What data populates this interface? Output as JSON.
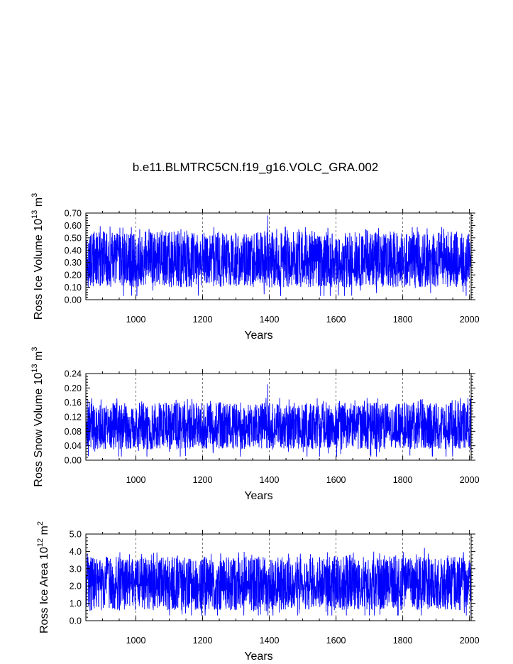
{
  "title": "b.e11.BLMTRC5CN.f19_g16.VOLC_GRA.002",
  "colors": {
    "series": "#0000ff",
    "axes": "#000000",
    "grid": "#555555"
  },
  "chart_data": [
    {
      "type": "line",
      "ylabel_main": "Ross Ice Volume 10",
      "ylabel_sup1": "13",
      "ylabel_mid": " m",
      "ylabel_sup2": "3",
      "xlabel": "Years",
      "xlim": [
        850,
        2005
      ],
      "ylim": [
        0.0,
        0.7
      ],
      "xticks": [
        1000,
        1200,
        1400,
        1600,
        1800,
        2000
      ],
      "xtick_labels": [
        "1000",
        "1200",
        "1400",
        "1600",
        "1800",
        "2000"
      ],
      "yticks": [
        0.0,
        0.1,
        0.2,
        0.3,
        0.4,
        0.5,
        0.6,
        0.7
      ],
      "ytick_labels": [
        "0.00",
        "0.10",
        "0.20",
        "0.30",
        "0.40",
        "0.50",
        "0.60",
        "0.70"
      ],
      "grid": "vertical-dashed",
      "series": [
        {
          "values": {
            "start_year": 850,
            "end_year": 2005,
            "mean": 0.3,
            "typical_min": 0.1,
            "typical_max": 0.55,
            "extreme_min": 0.03,
            "extreme_max": 0.68,
            "extreme_max_year": 1395
          }
        }
      ]
    },
    {
      "type": "line",
      "ylabel_main": "Ross Snow Volume 10",
      "ylabel_sup1": "13",
      "ylabel_mid": " m",
      "ylabel_sup2": "3",
      "xlabel": "Years",
      "xlim": [
        850,
        2005
      ],
      "ylim": [
        0.0,
        0.24
      ],
      "xticks": [
        1000,
        1200,
        1400,
        1600,
        1800,
        2000
      ],
      "xtick_labels": [
        "1000",
        "1200",
        "1400",
        "1600",
        "1800",
        "2000"
      ],
      "yticks": [
        0.0,
        0.04,
        0.08,
        0.12,
        0.16,
        0.2,
        0.24
      ],
      "ytick_labels": [
        "0.00",
        "0.04",
        "0.08",
        "0.12",
        "0.16",
        "0.20",
        "0.24"
      ],
      "grid": "vertical-dashed",
      "series": [
        {
          "values": {
            "start_year": 850,
            "end_year": 2005,
            "mean": 0.09,
            "typical_min": 0.03,
            "typical_max": 0.16,
            "extreme_min": 0.01,
            "extreme_max": 0.21,
            "extreme_max_year": 1395
          }
        }
      ]
    },
    {
      "type": "line",
      "ylabel_main": "Ross Ice Area 10",
      "ylabel_sup1": "12",
      "ylabel_mid": " m",
      "ylabel_sup2": "2",
      "xlabel": "Years",
      "xlim": [
        850,
        2005
      ],
      "ylim": [
        0.0,
        5.0
      ],
      "xticks": [
        1000,
        1200,
        1400,
        1600,
        1800,
        2000
      ],
      "xtick_labels": [
        "1000",
        "1200",
        "1400",
        "1600",
        "1800",
        "2000"
      ],
      "yticks": [
        0.0,
        1.0,
        2.0,
        3.0,
        4.0,
        5.0
      ],
      "ytick_labels": [
        "0.0",
        "1.0",
        "2.0",
        "3.0",
        "4.0",
        "5.0"
      ],
      "grid": "vertical-dashed",
      "series": [
        {
          "values": {
            "start_year": 850,
            "end_year": 2005,
            "mean": 2.1,
            "typical_min": 0.6,
            "typical_max": 3.7,
            "extreme_min": 0.3,
            "extreme_max": 4.2,
            "extreme_max_year": 1865
          }
        }
      ]
    }
  ]
}
